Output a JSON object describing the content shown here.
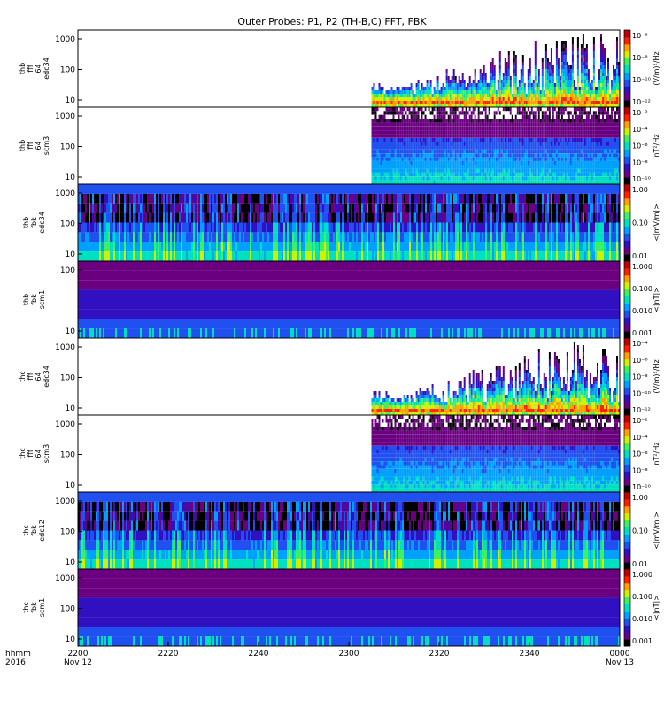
{
  "title": "Outer Probes: P1, P2 (TH-B,C) FFT, FBK",
  "chart_data": {
    "type": "heatmap",
    "title": "Outer Probes: P1, P2 (TH-B,C) FFT, FBK",
    "x_axis": {
      "label_line1": "hhmm",
      "label_line2": "2016",
      "ticks": [
        {
          "label": "2200",
          "sub": "Nov 12"
        },
        {
          "label": "2220",
          "sub": ""
        },
        {
          "label": "2240",
          "sub": ""
        },
        {
          "label": "2300",
          "sub": ""
        },
        {
          "label": "2320",
          "sub": ""
        },
        {
          "label": "2340",
          "sub": ""
        },
        {
          "label": "0000",
          "sub": "Nov 13"
        }
      ]
    },
    "panels": [
      {
        "ylabel": [
          "thb",
          "fff",
          "64",
          "edc34"
        ],
        "yticks": [
          "1000",
          "100",
          "10"
        ],
        "cb_unit": "(V/m)²/Hz",
        "cb_ticks": [
          "10⁻⁶",
          "10⁻⁸",
          "10⁻¹⁰",
          "10⁻¹²"
        ],
        "data_start": 2305,
        "style": "fff"
      },
      {
        "ylabel": [
          "thb",
          "fff",
          "64",
          "scm3"
        ],
        "yticks": [
          "1000",
          "100",
          "10"
        ],
        "cb_unit": "nT²/Hz",
        "cb_ticks": [
          "10⁻²",
          "10⁻⁴",
          "10⁻⁶",
          "10⁻⁸",
          "10⁻¹⁰"
        ],
        "data_start": 2305,
        "style": "scm"
      },
      {
        "ylabel": [
          "thb",
          "fbk",
          "edc34"
        ],
        "yticks": [
          "1000",
          "100",
          "10"
        ],
        "cb_unit": "<|mV/m|>",
        "cb_ticks": [
          "1.00",
          "0.10",
          "0.01"
        ],
        "data_start": 2200,
        "style": "fbk_e"
      },
      {
        "ylabel": [
          "thb",
          "fbk",
          "scm1"
        ],
        "yticks": [
          "100",
          "10"
        ],
        "cb_unit": "<|nT|>",
        "cb_ticks": [
          "1.000",
          "0.100",
          "0.010",
          "0.001"
        ],
        "data_start": 2200,
        "style": "fbk_b"
      },
      {
        "ylabel": [
          "thc",
          "fff",
          "64",
          "edc34"
        ],
        "yticks": [
          "1000",
          "100",
          "10"
        ],
        "cb_unit": "(V/m)²/Hz",
        "cb_ticks": [
          "10⁻⁴",
          "10⁻⁶",
          "10⁻⁸",
          "10⁻¹⁰",
          "10⁻¹²"
        ],
        "data_start": 2305,
        "style": "fff"
      },
      {
        "ylabel": [
          "thc",
          "fff",
          "64",
          "scm3"
        ],
        "yticks": [
          "1000",
          "100",
          "10"
        ],
        "cb_unit": "nT²/Hz",
        "cb_ticks": [
          "10⁻²",
          "10⁻⁴",
          "10⁻⁶",
          "10⁻⁸",
          "10⁻¹⁰"
        ],
        "data_start": 2305,
        "style": "scm"
      },
      {
        "ylabel": [
          "thc",
          "fbk",
          "edc12"
        ],
        "yticks": [
          "1000",
          "100",
          "10"
        ],
        "cb_unit": "<|mV/m|>",
        "cb_ticks": [
          "1.00",
          "0.10",
          "0.01"
        ],
        "data_start": 2200,
        "style": "fbk_e"
      },
      {
        "ylabel": [
          "thc",
          "fbk",
          "scm1"
        ],
        "yticks": [
          "1000",
          "100",
          "10"
        ],
        "cb_unit": "<|nT|>",
        "cb_ticks": [
          "1.000",
          "0.100",
          "0.010",
          "0.001"
        ],
        "data_start": 2200,
        "style": "fbk_b"
      }
    ],
    "colormap": [
      "#000000",
      "#6a0080",
      "#3010c0",
      "#2050f0",
      "#00a0ff",
      "#00e0c0",
      "#40f060",
      "#d0f000",
      "#ffa000",
      "#ff2000",
      "#c00000"
    ]
  }
}
